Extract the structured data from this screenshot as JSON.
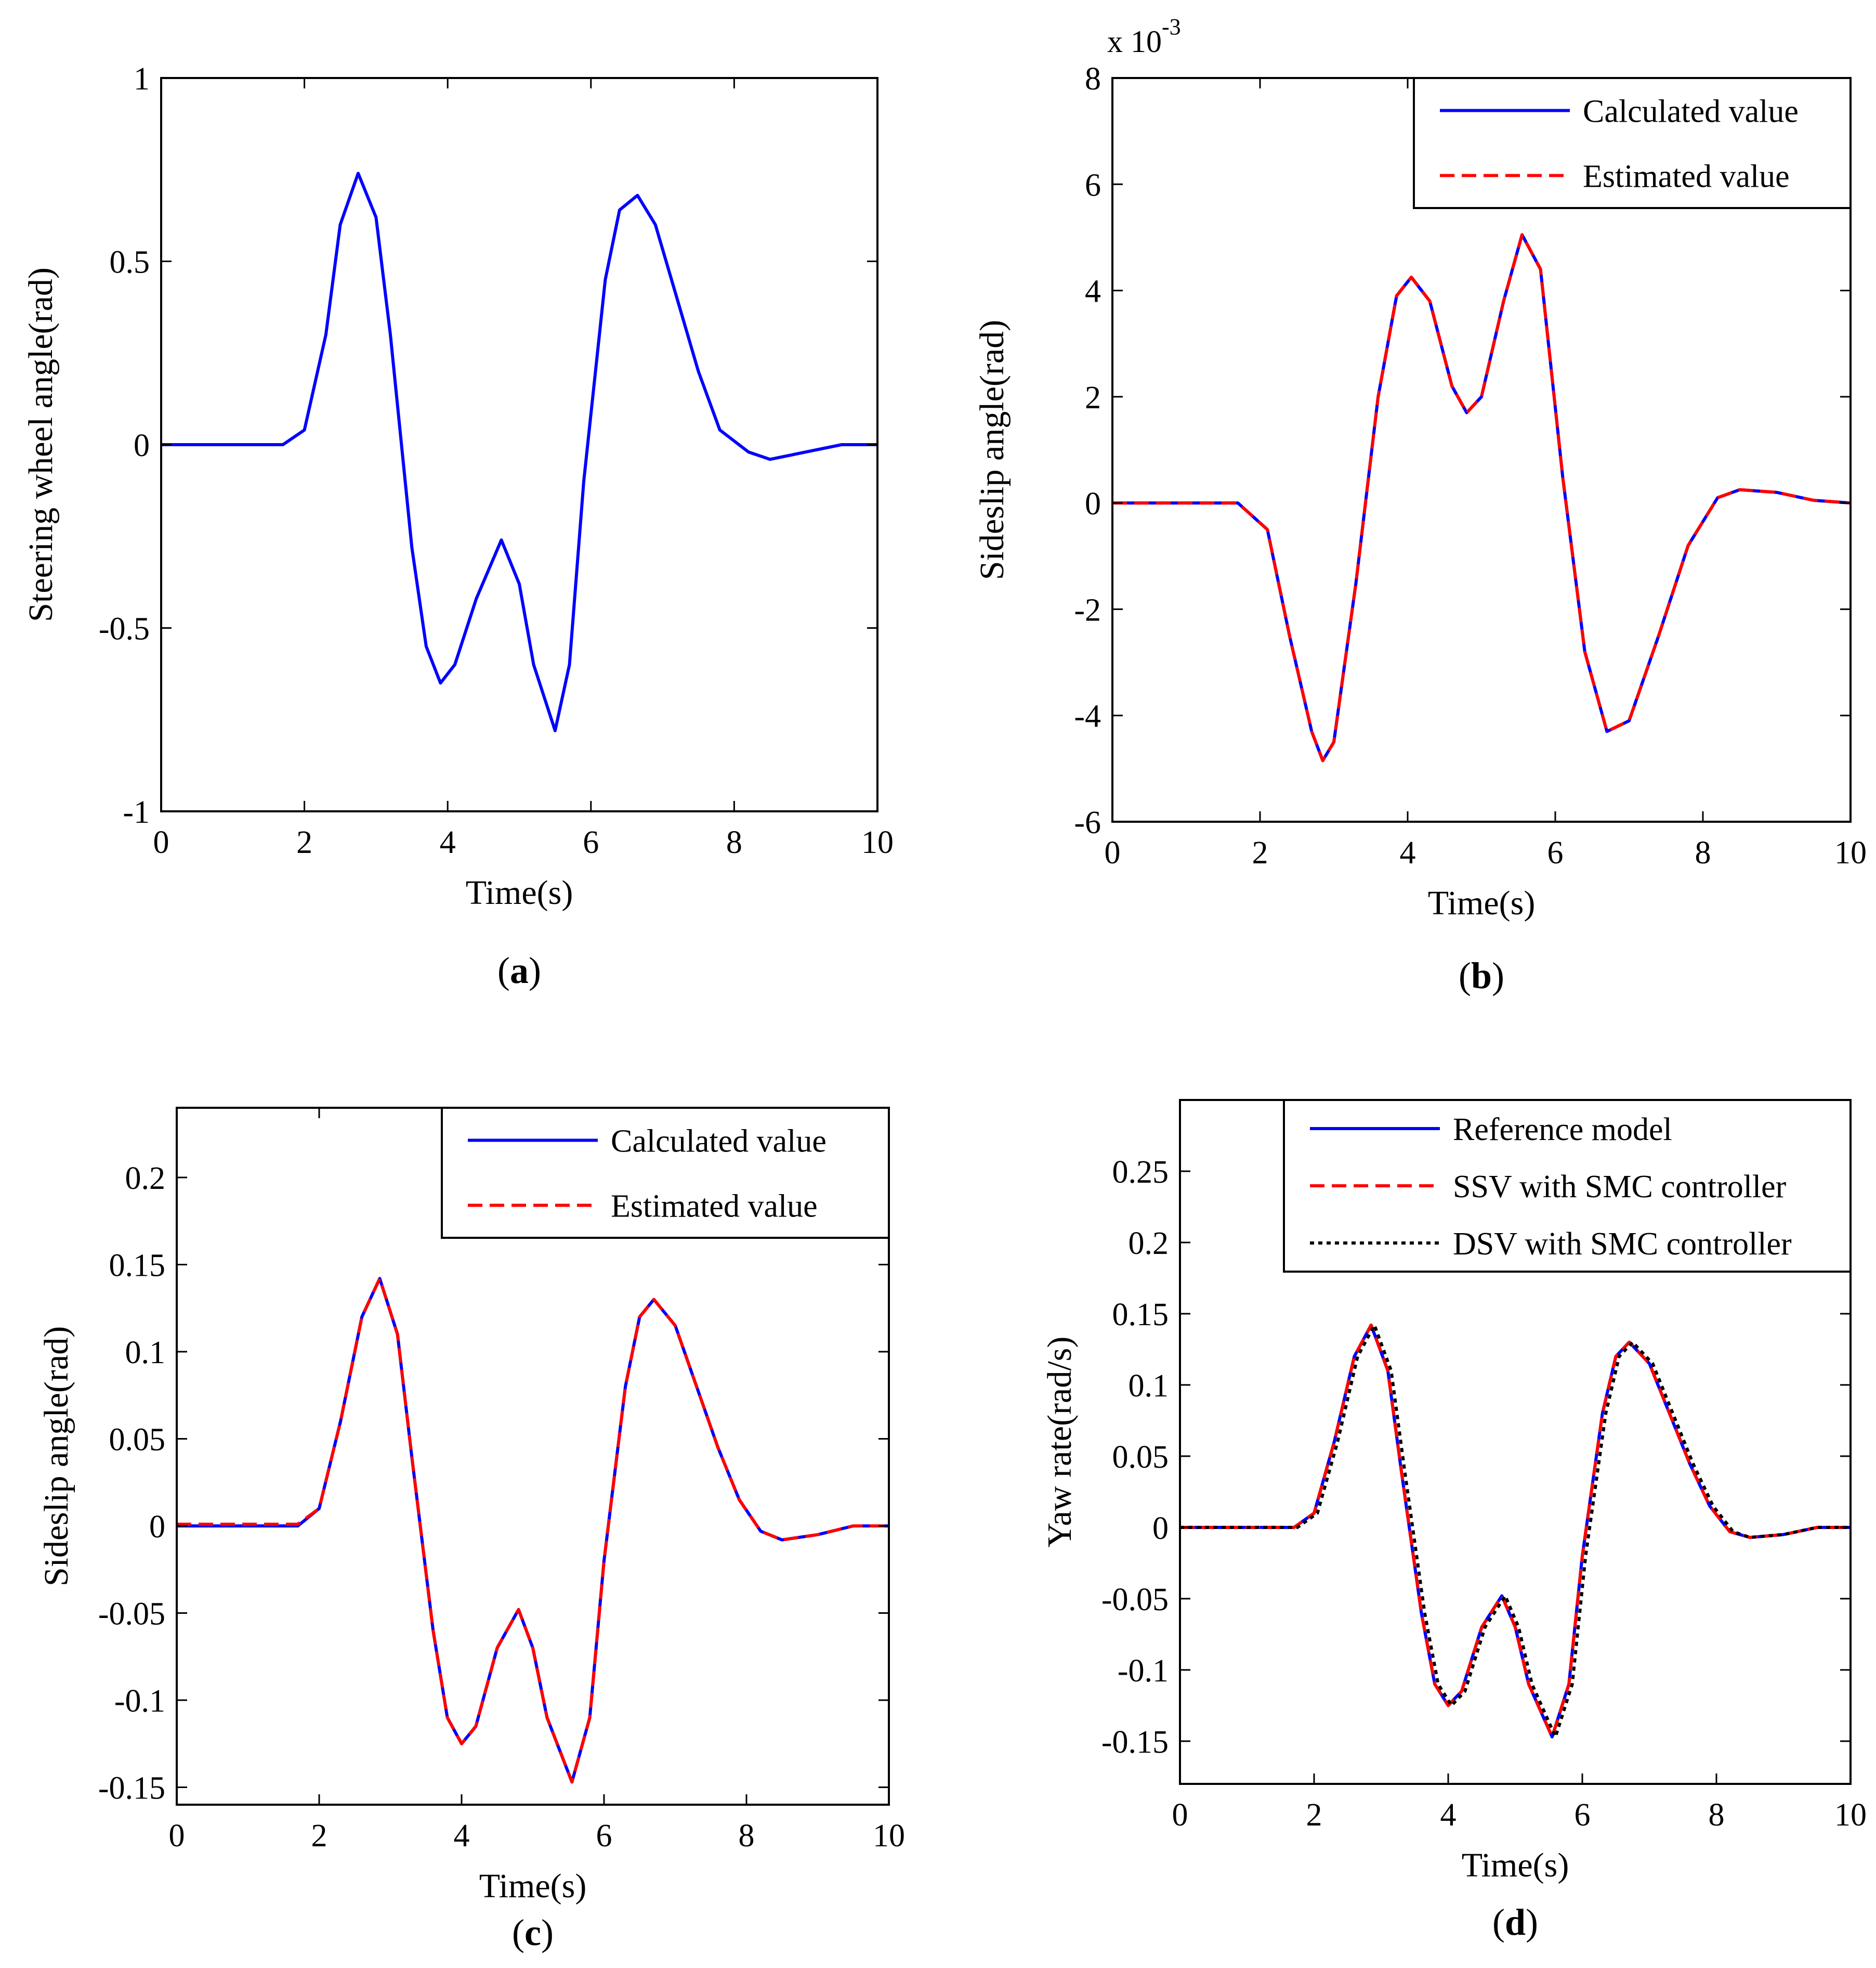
{
  "chart_data": [
    {
      "id": "a",
      "type": "line",
      "caption_open": "(",
      "caption_letter": "a",
      "caption_close": ")",
      "xlabel": "Time(s)",
      "ylabel": "Steering wheel angle(rad)",
      "xlim": [
        0,
        10
      ],
      "ylim": [
        -1,
        1
      ],
      "xticks": [
        0,
        2,
        4,
        6,
        8,
        10
      ],
      "xtick_labels": [
        "0",
        "2",
        "4",
        "6",
        "8",
        "10"
      ],
      "yticks": [
        1,
        0.5,
        0,
        -0.5,
        -1
      ],
      "ytick_labels": [
        "1",
        "0.5",
        "0",
        "-0.5",
        "-1"
      ],
      "y_multiplier": null,
      "legend": null,
      "series": [
        {
          "name": "Steering wheel angle",
          "color": "#0000ff",
          "style": "solid",
          "x": [
            0,
            1.7,
            2.0,
            2.3,
            2.5,
            2.75,
            3.0,
            3.2,
            3.5,
            3.7,
            3.9,
            4.1,
            4.4,
            4.75,
            5.0,
            5.2,
            5.5,
            5.7,
            5.9,
            6.2,
            6.4,
            6.65,
            6.9,
            7.2,
            7.5,
            7.8,
            8.2,
            8.5,
            9.0,
            9.5,
            10
          ],
          "y": [
            0,
            0,
            0.04,
            0.3,
            0.6,
            0.74,
            0.62,
            0.3,
            -0.28,
            -0.55,
            -0.65,
            -0.6,
            -0.42,
            -0.26,
            -0.38,
            -0.6,
            -0.78,
            -0.6,
            -0.1,
            0.45,
            0.64,
            0.68,
            0.6,
            0.4,
            0.2,
            0.04,
            -0.02,
            -0.04,
            -0.02,
            0,
            0
          ]
        }
      ]
    },
    {
      "id": "b",
      "type": "line",
      "caption_open": "(",
      "caption_letter": "b",
      "caption_close": ")",
      "xlabel": "Time(s)",
      "ylabel": "Sideslip angle(rad)",
      "xlim": [
        0,
        10
      ],
      "ylim": [
        -6,
        8
      ],
      "xticks": [
        0,
        2,
        4,
        6,
        8,
        10
      ],
      "xtick_labels": [
        "0",
        "2",
        "4",
        "6",
        "8",
        "10"
      ],
      "yticks": [
        8,
        6,
        4,
        2,
        0,
        -2,
        -4,
        -6
      ],
      "ytick_labels": [
        "8",
        "6",
        "4",
        "2",
        "0",
        "-2",
        "-4",
        "-6"
      ],
      "y_multiplier": {
        "base": "x 10",
        "exponent": "-3"
      },
      "legend": {
        "placement": "top-right",
        "entries": [
          "Calculated value",
          "Estimated value"
        ]
      },
      "series": [
        {
          "name": "Calculated value",
          "color": "#0000ff",
          "style": "solid",
          "x": [
            0,
            1.7,
            2.1,
            2.4,
            2.7,
            2.85,
            3.0,
            3.3,
            3.6,
            3.85,
            4.05,
            4.3,
            4.6,
            4.8,
            5.0,
            5.3,
            5.55,
            5.8,
            6.1,
            6.4,
            6.7,
            7.0,
            7.4,
            7.8,
            8.2,
            8.5,
            9.0,
            9.5,
            10
          ],
          "y": [
            0,
            0,
            -0.5,
            -2.5,
            -4.3,
            -4.85,
            -4.5,
            -1.5,
            2.0,
            3.9,
            4.25,
            3.8,
            2.2,
            1.7,
            2.0,
            3.8,
            5.05,
            4.4,
            0.5,
            -2.8,
            -4.3,
            -4.1,
            -2.5,
            -0.8,
            0.1,
            0.25,
            0.2,
            0.05,
            0
          ]
        },
        {
          "name": "Estimated value",
          "color": "#ff0000",
          "style": "dashed",
          "x": [
            0,
            1.7,
            2.1,
            2.4,
            2.7,
            2.85,
            3.0,
            3.3,
            3.6,
            3.85,
            4.05,
            4.3,
            4.6,
            4.8,
            5.0,
            5.3,
            5.55,
            5.8,
            6.1,
            6.4,
            6.7,
            7.0,
            7.4,
            7.8,
            8.2,
            8.5,
            9.0,
            9.5,
            10
          ],
          "y": [
            0,
            0,
            -0.5,
            -2.5,
            -4.3,
            -4.85,
            -4.5,
            -1.5,
            2.0,
            3.9,
            4.25,
            3.8,
            2.2,
            1.7,
            2.0,
            3.8,
            5.05,
            4.4,
            0.5,
            -2.8,
            -4.3,
            -4.1,
            -2.5,
            -0.8,
            0.1,
            0.25,
            0.2,
            0.05,
            0
          ]
        }
      ]
    },
    {
      "id": "c",
      "type": "line",
      "caption_open": "(",
      "caption_letter": "c",
      "caption_close": ")",
      "xlabel": "Time(s)",
      "ylabel": "Sideslip angle(rad)",
      "xlim": [
        0,
        10
      ],
      "ylim": [
        -0.16,
        0.24
      ],
      "xticks": [
        0,
        2,
        4,
        6,
        8,
        10
      ],
      "xtick_labels": [
        "0",
        "2",
        "4",
        "6",
        "8",
        "10"
      ],
      "yticks": [
        0.2,
        0.15,
        0.1,
        0.05,
        0,
        -0.05,
        -0.1,
        -0.15
      ],
      "ytick_labels": [
        "0.2",
        "0.15",
        "0.1",
        "0.05",
        "0",
        "-0.05",
        "-0.1",
        "-0.15"
      ],
      "y_multiplier": null,
      "legend": {
        "placement": "top-right",
        "entries": [
          "Calculated value",
          "Estimated value"
        ]
      },
      "series": [
        {
          "name": "Calculated value",
          "color": "#0000ff",
          "style": "solid",
          "x": [
            0,
            1.7,
            2.0,
            2.3,
            2.6,
            2.85,
            3.1,
            3.3,
            3.6,
            3.8,
            4.0,
            4.2,
            4.5,
            4.8,
            5.0,
            5.2,
            5.55,
            5.8,
            6.0,
            6.3,
            6.5,
            6.7,
            7.0,
            7.3,
            7.6,
            7.9,
            8.2,
            8.5,
            9.0,
            9.5,
            10
          ],
          "y": [
            0,
            0,
            0.01,
            0.06,
            0.12,
            0.142,
            0.11,
            0.04,
            -0.06,
            -0.11,
            -0.125,
            -0.115,
            -0.07,
            -0.048,
            -0.07,
            -0.11,
            -0.147,
            -0.11,
            -0.02,
            0.08,
            0.12,
            0.13,
            0.115,
            0.08,
            0.045,
            0.015,
            -0.003,
            -0.008,
            -0.005,
            0,
            0
          ]
        },
        {
          "name": "Estimated value",
          "color": "#ff0000",
          "style": "dashed",
          "x": [
            0,
            1.7,
            2.0,
            2.3,
            2.6,
            2.85,
            3.1,
            3.3,
            3.6,
            3.8,
            4.0,
            4.2,
            4.5,
            4.8,
            5.0,
            5.2,
            5.55,
            5.8,
            6.0,
            6.3,
            6.5,
            6.7,
            7.0,
            7.3,
            7.6,
            7.9,
            8.2,
            8.5,
            9.0,
            9.5,
            10
          ],
          "y": [
            0.001,
            0.001,
            0.01,
            0.06,
            0.12,
            0.142,
            0.11,
            0.04,
            -0.06,
            -0.11,
            -0.125,
            -0.115,
            -0.07,
            -0.048,
            -0.07,
            -0.11,
            -0.147,
            -0.11,
            -0.02,
            0.08,
            0.12,
            0.13,
            0.115,
            0.08,
            0.045,
            0.015,
            -0.003,
            -0.008,
            -0.005,
            0,
            0
          ]
        }
      ]
    },
    {
      "id": "d",
      "type": "line",
      "caption_open": "(",
      "caption_letter": "d",
      "caption_close": ")",
      "xlabel": "Time(s)",
      "ylabel": "Yaw rate(rad/s)",
      "xlim": [
        0,
        10
      ],
      "ylim": [
        -0.18,
        0.3
      ],
      "xticks": [
        0,
        2,
        4,
        6,
        8,
        10
      ],
      "xtick_labels": [
        "0",
        "2",
        "4",
        "6",
        "8",
        "10"
      ],
      "yticks": [
        0.25,
        0.2,
        0.15,
        0.1,
        0.05,
        0,
        -0.05,
        -0.1,
        -0.15
      ],
      "ytick_labels": [
        "0.25",
        "0.2",
        "0.15",
        "0.1",
        "0.05",
        "0",
        "-0.05",
        "-0.1",
        "-0.15"
      ],
      "y_multiplier": null,
      "legend": {
        "placement": "top-right",
        "entries": [
          "Reference model",
          "SSV with SMC controller",
          "DSV with SMC controller"
        ]
      },
      "series": [
        {
          "name": "Reference model",
          "color": "#0000ff",
          "style": "solid",
          "x": [
            0,
            1.7,
            2.0,
            2.3,
            2.6,
            2.85,
            3.1,
            3.3,
            3.6,
            3.8,
            4.0,
            4.2,
            4.5,
            4.8,
            5.0,
            5.2,
            5.55,
            5.8,
            6.0,
            6.3,
            6.5,
            6.7,
            7.0,
            7.3,
            7.6,
            7.9,
            8.2,
            8.5,
            9.0,
            9.5,
            10
          ],
          "y": [
            0,
            0,
            0.01,
            0.06,
            0.12,
            0.142,
            0.11,
            0.04,
            -0.06,
            -0.11,
            -0.125,
            -0.115,
            -0.07,
            -0.048,
            -0.07,
            -0.11,
            -0.147,
            -0.11,
            -0.02,
            0.08,
            0.12,
            0.13,
            0.115,
            0.08,
            0.045,
            0.015,
            -0.003,
            -0.007,
            -0.005,
            0,
            0
          ]
        },
        {
          "name": "SSV with SMC controller",
          "color": "#ff0000",
          "style": "dashed",
          "x": [
            0,
            1.7,
            2.0,
            2.3,
            2.6,
            2.85,
            3.1,
            3.3,
            3.6,
            3.8,
            4.0,
            4.2,
            4.5,
            4.8,
            5.0,
            5.2,
            5.55,
            5.8,
            6.0,
            6.3,
            6.5,
            6.7,
            7.0,
            7.3,
            7.6,
            7.9,
            8.2,
            8.5,
            9.0,
            9.5,
            10
          ],
          "y": [
            0,
            0,
            0.01,
            0.06,
            0.12,
            0.142,
            0.11,
            0.04,
            -0.06,
            -0.11,
            -0.125,
            -0.115,
            -0.07,
            -0.048,
            -0.07,
            -0.11,
            -0.147,
            -0.11,
            -0.02,
            0.08,
            0.12,
            0.13,
            0.115,
            0.08,
            0.045,
            0.015,
            -0.003,
            -0.007,
            -0.005,
            0,
            0
          ]
        },
        {
          "name": "DSV with SMC controller",
          "color": "#000000",
          "style": "dotted",
          "x": [
            0,
            1.75,
            2.05,
            2.35,
            2.65,
            2.9,
            3.15,
            3.35,
            3.65,
            3.85,
            4.05,
            4.25,
            4.55,
            4.85,
            5.05,
            5.25,
            5.6,
            5.85,
            6.05,
            6.35,
            6.55,
            6.75,
            7.05,
            7.35,
            7.65,
            7.95,
            8.25,
            8.5,
            9.0,
            9.5,
            10
          ],
          "y": [
            0,
            0,
            0.01,
            0.06,
            0.12,
            0.142,
            0.11,
            0.04,
            -0.06,
            -0.11,
            -0.125,
            -0.115,
            -0.07,
            -0.048,
            -0.07,
            -0.11,
            -0.147,
            -0.11,
            -0.02,
            0.08,
            0.12,
            0.13,
            0.115,
            0.08,
            0.045,
            0.015,
            -0.003,
            -0.007,
            -0.005,
            0,
            0
          ]
        }
      ]
    }
  ]
}
